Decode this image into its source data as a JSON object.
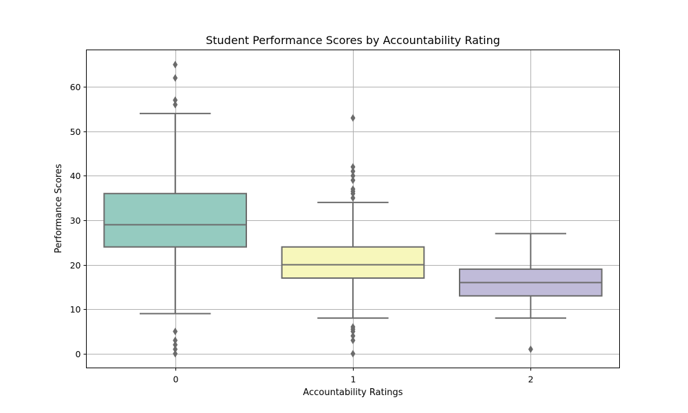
{
  "chart_data": {
    "type": "box",
    "title": "Student Performance Scores by Accountability Rating",
    "xlabel": "Accountability Ratings",
    "ylabel": "Performance Scores",
    "categories": [
      "0",
      "1",
      "2"
    ],
    "ylim": [
      -3.2,
      68.3
    ],
    "yticks": [
      0,
      10,
      20,
      30,
      40,
      50,
      60
    ],
    "grid": true,
    "colors": [
      "#95cbc0",
      "#f7f7bb",
      "#c0bbd9"
    ],
    "edge_color": "#6b6b6b",
    "boxes": [
      {
        "category": "0",
        "whislo": 9,
        "q1": 24,
        "median": 29,
        "q3": 36,
        "whishi": 54,
        "fliers": [
          65,
          62,
          57,
          56,
          5,
          3,
          2,
          1,
          0
        ]
      },
      {
        "category": "1",
        "whislo": 8,
        "q1": 17,
        "median": 20,
        "q3": 24,
        "whishi": 34,
        "fliers": [
          53,
          42,
          41,
          40,
          39,
          37,
          36.5,
          36,
          35,
          6,
          5.5,
          5,
          4,
          3,
          0
        ]
      },
      {
        "category": "2",
        "whislo": 8,
        "q1": 13,
        "median": 16,
        "q3": 19,
        "whishi": 27,
        "fliers": [
          1
        ]
      }
    ]
  }
}
